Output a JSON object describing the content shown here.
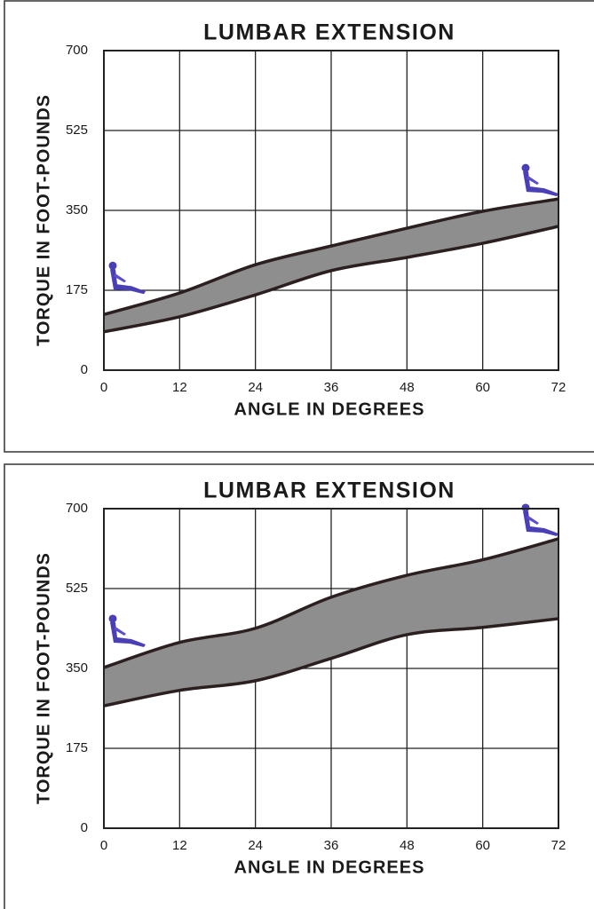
{
  "chart_data": [
    {
      "type": "band",
      "title": "LUMBAR EXTENSION",
      "x_label": "ANGLE IN DEGREES",
      "y_label": "TORQUE IN FOOT-POUNDS",
      "x": [
        0,
        12,
        24,
        36,
        48,
        60,
        72
      ],
      "series": [
        {
          "color": "#2b1f1f",
          "values": [
            122,
            169,
            231,
            272,
            311,
            348,
            375
          ]
        },
        {
          "color": "#2b1f1f",
          "values": [
            84,
            117,
            165,
            218,
            247,
            278,
            315
          ]
        }
      ],
      "fill": "#8e8e8e",
      "xlim": [
        0,
        72
      ],
      "xticks": [
        0,
        12,
        24,
        36,
        48,
        60,
        72
      ],
      "ylim": [
        0,
        700
      ],
      "yticks": [
        0,
        175,
        350,
        525,
        700
      ],
      "grid": true
    },
    {
      "type": "band",
      "title": "LUMBAR EXTENSION",
      "x_label": "ANGLE IN DEGREES",
      "y_label": "TORQUE IN FOOT-POUNDS",
      "x": [
        0,
        12,
        24,
        36,
        48,
        60,
        72
      ],
      "series": [
        {
          "color": "#2b1f1f",
          "values": [
            352,
            407,
            438,
            506,
            554,
            588,
            634
          ]
        },
        {
          "color": "#2b1f1f",
          "values": [
            268,
            302,
            323,
            372,
            424,
            440,
            459
          ]
        }
      ],
      "fill": "#8e8e8e",
      "xlim": [
        0,
        72
      ],
      "xticks": [
        0,
        12,
        24,
        36,
        48,
        60,
        72
      ],
      "ylim": [
        0,
        700
      ],
      "yticks": [
        0,
        175,
        350,
        525,
        700
      ],
      "grid": true
    }
  ]
}
